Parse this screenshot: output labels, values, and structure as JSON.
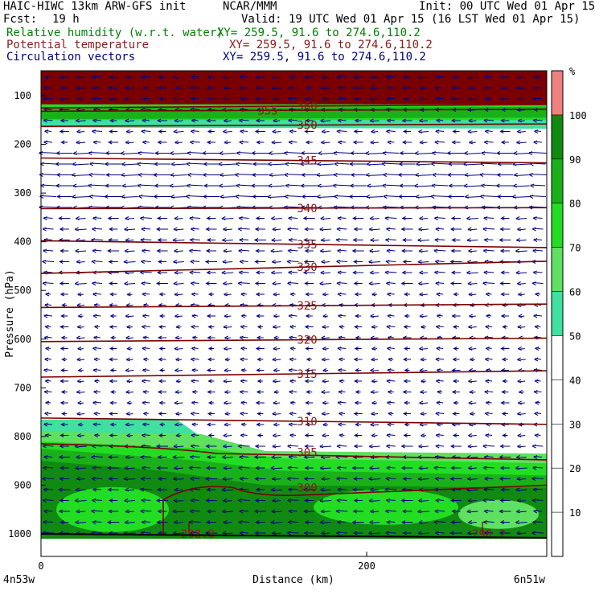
{
  "header": {
    "model_line": "HAIC-HIWC 13km ARW-GFS init",
    "org": "NCAR/MMM",
    "init": "Init: 00 UTC Wed 01 Apr 15",
    "fcst_label": "Fcst:",
    "fcst_value": "19 h",
    "valid": "Valid: 19 UTC Wed 01 Apr 15 (16 LST Wed 01 Apr 15)",
    "fields": [
      {
        "name": "Relative humidity (w.r.t. water)",
        "xy": "XY= 259.5, 91.6 to 274.6,110.2",
        "color": "#008000"
      },
      {
        "name": "Potential temperature",
        "xy": "XY= 259.5, 91.6 to 274.6,110.2",
        "color": "#8b1a1a"
      },
      {
        "name": "Circulation vectors",
        "xy": "XY= 259.5, 91.6 to 274.6,110.2",
        "color": "#000080"
      }
    ]
  },
  "chart_data": {
    "type": "cross-section",
    "xlabel": "Distance (km)",
    "ylabel": "Pressure (hPa)",
    "xlim": [
      0,
      310
    ],
    "ylim": [
      1050,
      80
    ],
    "x_ticks": [
      0,
      200
    ],
    "y_ticks": [
      100,
      200,
      300,
      400,
      500,
      600,
      700,
      800,
      900,
      1000
    ],
    "left_endpoint": "4n53w",
    "right_endpoint": "6n51w",
    "colorbar": {
      "unit": "%",
      "ticks": [
        10,
        20,
        30,
        40,
        50,
        60,
        70,
        80,
        90,
        100
      ],
      "bins": [
        {
          "from": 0,
          "to": 50,
          "color": "#ffffff"
        },
        {
          "from": 50,
          "to": 60,
          "color": "#40e0a0"
        },
        {
          "from": 60,
          "to": 70,
          "color": "#60e060"
        },
        {
          "from": 70,
          "to": 80,
          "color": "#22dd22"
        },
        {
          "from": 80,
          "to": 90,
          "color": "#1ab01a"
        },
        {
          "from": 90,
          "to": 100,
          "color": "#108a10"
        },
        {
          "from": 100,
          "to": 110,
          "color": "#f08080"
        }
      ]
    },
    "isentropes": [
      {
        "theta": "360",
        "p_left": 125,
        "p_right": 118
      },
      {
        "theta": "355",
        "p_left": 132,
        "p_right": 128
      },
      {
        "theta": "350",
        "p_left": 163,
        "p_right": 158
      },
      {
        "theta": "345",
        "p_left": 228,
        "p_right": 238
      },
      {
        "theta": "340",
        "p_left": 332,
        "p_right": 330
      },
      {
        "theta": "335",
        "p_left": 398,
        "p_right": 412
      },
      {
        "theta": "330",
        "p_left": 465,
        "p_right": 440
      },
      {
        "theta": "325",
        "p_left": 535,
        "p_right": 528
      },
      {
        "theta": "320",
        "p_left": 605,
        "p_right": 598
      },
      {
        "theta": "315",
        "p_left": 678,
        "p_right": 665
      },
      {
        "theta": "310",
        "p_left": 762,
        "p_right": 775
      },
      {
        "theta": "305",
        "p_left": 815,
        "p_right": 848
      },
      {
        "theta": "300",
        "p_left": 905,
        "p_right": 900
      },
      {
        "theta": "298.8",
        "p_left": 1000,
        "p_right": 1000
      },
      {
        "theta": "298.2",
        "p_left": 1005,
        "p_right": 1005
      }
    ],
    "wind": "mostly easterly (leftward) circulation vectors throughout the column"
  }
}
